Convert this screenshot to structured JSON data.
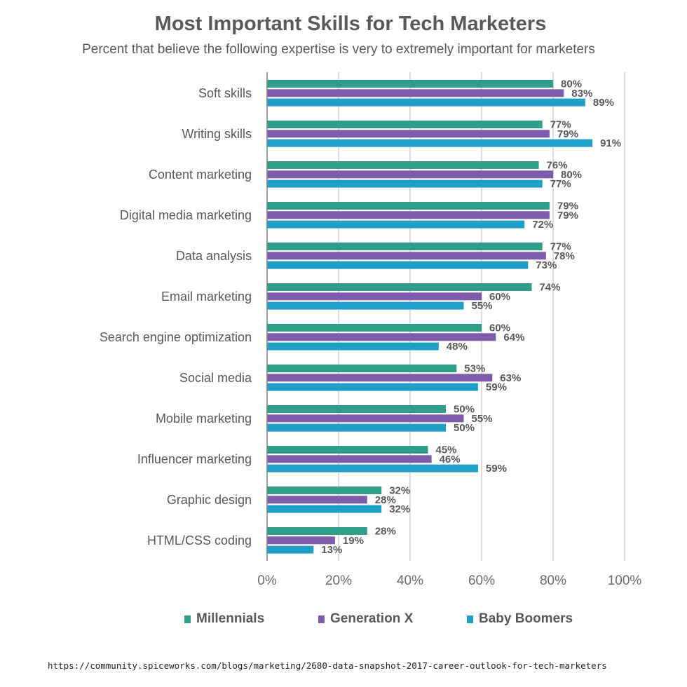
{
  "chart_data": {
    "type": "bar",
    "orientation": "horizontal",
    "title": "Most Important Skills for Tech Marketers",
    "subtitle": "Percent that believe the following expertise is very to extremely important for marketers",
    "categories": [
      "Soft skills",
      "Writing skills",
      "Content marketing",
      "Digital media marketing",
      "Data analysis",
      "Email marketing",
      "Search engine optimization",
      "Social media",
      "Mobile marketing",
      "Influencer marketing",
      "Graphic design",
      "HTML/CSS coding"
    ],
    "series": [
      {
        "name": "Millennials",
        "color": "#2e9e8a",
        "values": [
          80,
          77,
          76,
          79,
          77,
          74,
          60,
          53,
          50,
          45,
          32,
          28
        ]
      },
      {
        "name": "Generation X",
        "color": "#7e5bab",
        "values": [
          83,
          79,
          80,
          79,
          78,
          60,
          64,
          63,
          55,
          46,
          28,
          19
        ]
      },
      {
        "name": "Baby Boomers",
        "color": "#1f9fc6",
        "values": [
          89,
          91,
          77,
          72,
          73,
          55,
          48,
          59,
          50,
          59,
          32,
          13
        ]
      }
    ],
    "value_suffix": "%",
    "xlim": [
      0,
      100
    ],
    "xticks": [
      "0%",
      "20%",
      "40%",
      "60%",
      "80%",
      "100%"
    ],
    "grid": true,
    "legend_position": "bottom"
  },
  "source": "https://community.spiceworks.com/blogs/marketing/2680-data-snapshot-2017-career-outlook-for-tech-marketers"
}
